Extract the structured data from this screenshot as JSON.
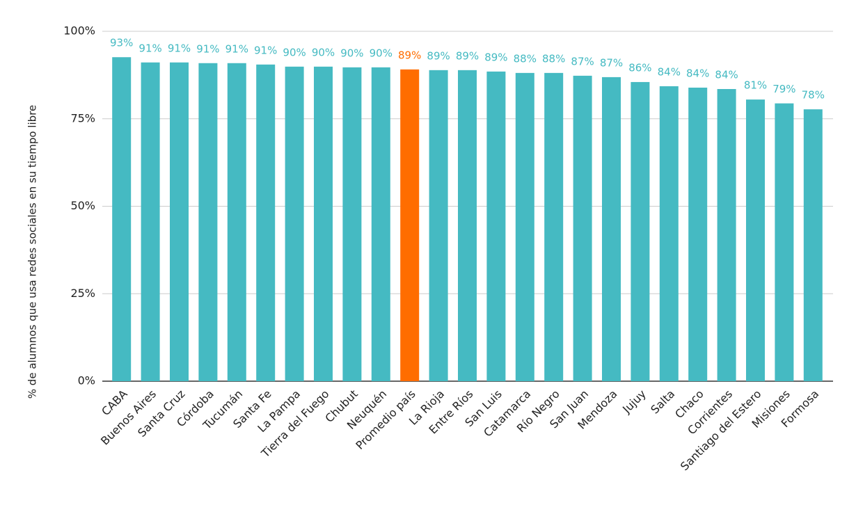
{
  "chart_data": {
    "type": "bar",
    "y_axis_label": "% de alumnos que usa redes sociales en su tiempo libre",
    "categories": [
      "CABA",
      "Buenos Aires",
      "Santa Cruz",
      "Córdoba",
      "Tucumán",
      "Santa Fe",
      "La Pampa",
      "Tierra del Fuego",
      "Chubut",
      "Neuquén",
      "Promedio país",
      "La Rioja",
      "Entre Ríos",
      "San Luis",
      "Catamarca",
      "Río Negro",
      "San Juan",
      "Mendoza",
      "Jujuy",
      "Salta",
      "Chaco",
      "Corrientes",
      "Santiago del Estero",
      "Misiones",
      "Formosa"
    ],
    "values": [
      92.6,
      91.1,
      91.1,
      90.9,
      90.9,
      90.5,
      89.9,
      89.9,
      89.7,
      89.7,
      89.1,
      88.9,
      88.9,
      88.5,
      88.1,
      88.1,
      87.3,
      86.9,
      85.5,
      84.3,
      83.9,
      83.5,
      80.5,
      79.4,
      77.7
    ],
    "value_labels": [
      "93%",
      "91%",
      "91%",
      "91%",
      "91%",
      "91%",
      "90%",
      "90%",
      "90%",
      "90%",
      "89%",
      "89%",
      "89%",
      "89%",
      "88%",
      "88%",
      "87%",
      "87%",
      "86%",
      "84%",
      "84%",
      "84%",
      "81%",
      "79%",
      "78%"
    ],
    "colors": [
      "#45bac2",
      "#45bac2",
      "#45bac2",
      "#45bac2",
      "#45bac2",
      "#45bac2",
      "#45bac2",
      "#45bac2",
      "#45bac2",
      "#45bac2",
      "#ff6d00",
      "#45bac2",
      "#45bac2",
      "#45bac2",
      "#45bac2",
      "#45bac2",
      "#45bac2",
      "#45bac2",
      "#45bac2",
      "#45bac2",
      "#45bac2",
      "#45bac2",
      "#45bac2",
      "#45bac2",
      "#45bac2"
    ],
    "ylim": [
      0,
      100
    ],
    "yticks": [
      {
        "value": 0,
        "label": "0%"
      },
      {
        "value": 25,
        "label": "25%"
      },
      {
        "value": 50,
        "label": "50%"
      },
      {
        "value": 75,
        "label": "75%"
      },
      {
        "value": 100,
        "label": "100%"
      }
    ],
    "grid": true
  }
}
